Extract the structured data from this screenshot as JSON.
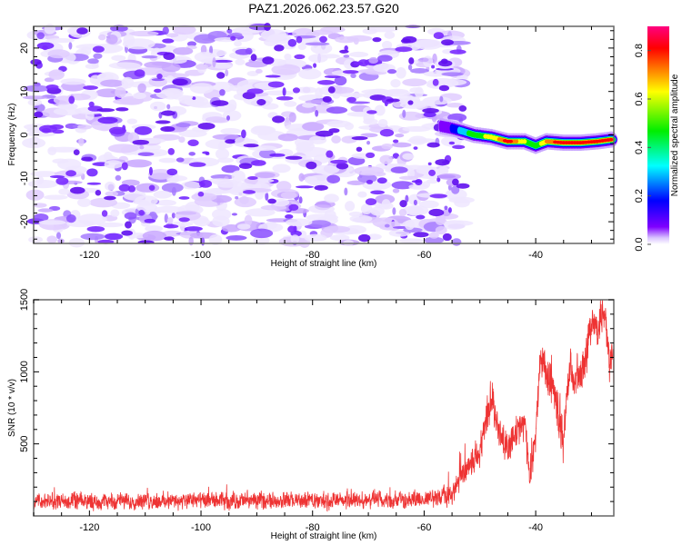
{
  "figure": {
    "title": "PAZ1.2026.062.23.57.G20"
  },
  "chart_data": [
    {
      "type": "heatmap",
      "name": "spectrogram",
      "title": "PAZ1.2026.062.23.57.G20",
      "xlabel": "Height of straight line (km)",
      "ylabel": "Frequency (Hz)",
      "xlim": [
        -130,
        -26
      ],
      "ylim": [
        -25,
        25
      ],
      "xticks": [
        -120,
        -100,
        -80,
        -60,
        -40
      ],
      "xtick_labels": [
        "-120",
        "-100",
        "-80",
        "-60",
        "-40"
      ],
      "yticks": [
        -20,
        -10,
        0,
        10,
        20
      ],
      "ytick_labels": [
        "-20",
        "-10",
        "0",
        "10",
        "20"
      ],
      "noise_region_x": [
        -130,
        -53
      ],
      "noise_level": "low (0.0-0.15 normalized amplitude), scattered purple blobs",
      "signal_track": {
        "description": "Strong narrow signal near 0 Hz emerging at about -57 km",
        "points": [
          {
            "x": -57,
            "freq": 2.0,
            "amp": 0.15
          },
          {
            "x": -55,
            "freq": 1.5,
            "amp": 0.2
          },
          {
            "x": -53,
            "freq": 0.8,
            "amp": 0.35
          },
          {
            "x": -51,
            "freq": 0.0,
            "amp": 0.45
          },
          {
            "x": -48,
            "freq": -0.5,
            "amp": 0.6
          },
          {
            "x": -45,
            "freq": -1.5,
            "amp": 0.85
          },
          {
            "x": -42,
            "freq": -1.5,
            "amp": 0.55
          },
          {
            "x": -40,
            "freq": -2.5,
            "amp": 0.4
          },
          {
            "x": -38,
            "freq": -1.5,
            "amp": 0.75
          },
          {
            "x": -35,
            "freq": -1.8,
            "amp": 0.85
          },
          {
            "x": -32,
            "freq": -1.8,
            "amp": 0.9
          },
          {
            "x": -29,
            "freq": -1.5,
            "amp": 0.85
          },
          {
            "x": -26,
            "freq": -1.0,
            "amp": 0.8
          }
        ]
      },
      "colorbar": {
        "label": "Normalized spectral amplitude",
        "range": [
          0.0,
          0.9
        ],
        "ticks": [
          0.0,
          0.2,
          0.4,
          0.6,
          0.8
        ],
        "tick_labels": [
          "0.0",
          "0.2",
          "0.4",
          "0.6",
          "0.8"
        ],
        "colormap": [
          "#ffffff",
          "#7f00ff",
          "#0000ff",
          "#00ffff",
          "#00ff00",
          "#ffff00",
          "#ff8000",
          "#ff0000",
          "#ff0080"
        ]
      },
      "grid": false
    },
    {
      "type": "line",
      "name": "snr",
      "xlabel": "Height of straight line (km)",
      "ylabel": "SNR (10 * v/v)",
      "xlim": [
        -130,
        -26
      ],
      "ylim": [
        0,
        1500
      ],
      "xticks": [
        -120,
        -100,
        -80,
        -60,
        -40
      ],
      "xtick_labels": [
        "-120",
        "-100",
        "-80",
        "-60",
        "-40"
      ],
      "yticks": [
        500,
        1000,
        1500
      ],
      "ytick_labels": [
        "500",
        "1000",
        "1500"
      ],
      "grid": false,
      "series": [
        {
          "name": "SNR",
          "color": "#ee3333",
          "envelope": {
            "x": [
              -130,
              -60,
              -55,
              -53,
              -50,
              -48,
              -47,
              -46,
              -45,
              -44,
              -42,
              -41,
              -40,
              -39,
              -38,
              -37,
              -36,
              -35,
              -34,
              -32,
              -31,
              -30,
              -29,
              -28,
              -27,
              -26
            ],
            "mean": [
              100,
              110,
              150,
              300,
              450,
              850,
              650,
              550,
              450,
              550,
              650,
              250,
              600,
              1100,
              1000,
              900,
              700,
              500,
              1000,
              950,
              1100,
              1350,
              1250,
              1450,
              1150,
              1000
            ],
            "noise": [
              60,
              60,
              80,
              100,
              120,
              150,
              120,
              120,
              120,
              120,
              120,
              100,
              150,
              150,
              150,
              150,
              150,
              150,
              150,
              150,
              150,
              150,
              150,
              150,
              150,
              150
            ]
          },
          "peak_value": 1500,
          "peak_x": -30.5
        }
      ]
    }
  ]
}
